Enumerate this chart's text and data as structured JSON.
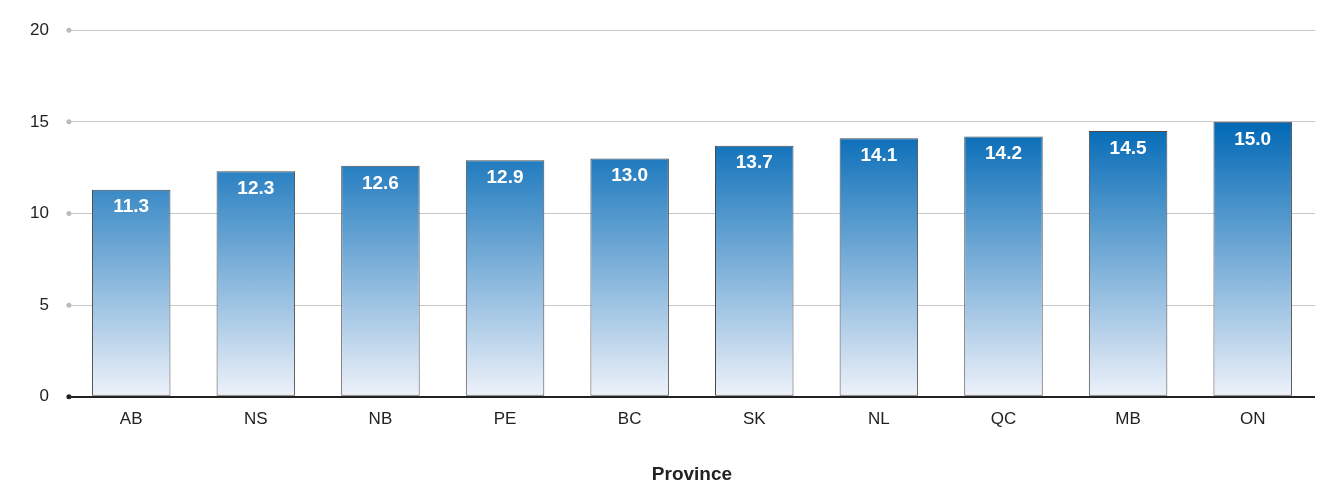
{
  "chart_data": {
    "type": "bar",
    "xlabel": "Province",
    "categories": [
      "AB",
      "NS",
      "NB",
      "PE",
      "BC",
      "SK",
      "NL",
      "QC",
      "MB",
      "ON"
    ],
    "values": [
      11.3,
      12.3,
      12.6,
      12.9,
      13.0,
      13.7,
      14.1,
      14.2,
      14.5,
      15.0
    ],
    "color": "#0068b5",
    "value_labels": [
      "11.3",
      "12.3",
      "12.6",
      "12.9",
      "13.0",
      "13.7",
      "14.1",
      "14.2",
      "14.5",
      "15.0"
    ],
    "ylim": [
      0,
      20
    ],
    "yticks": [
      0,
      5,
      10,
      15,
      20
    ],
    "grid": "y"
  }
}
